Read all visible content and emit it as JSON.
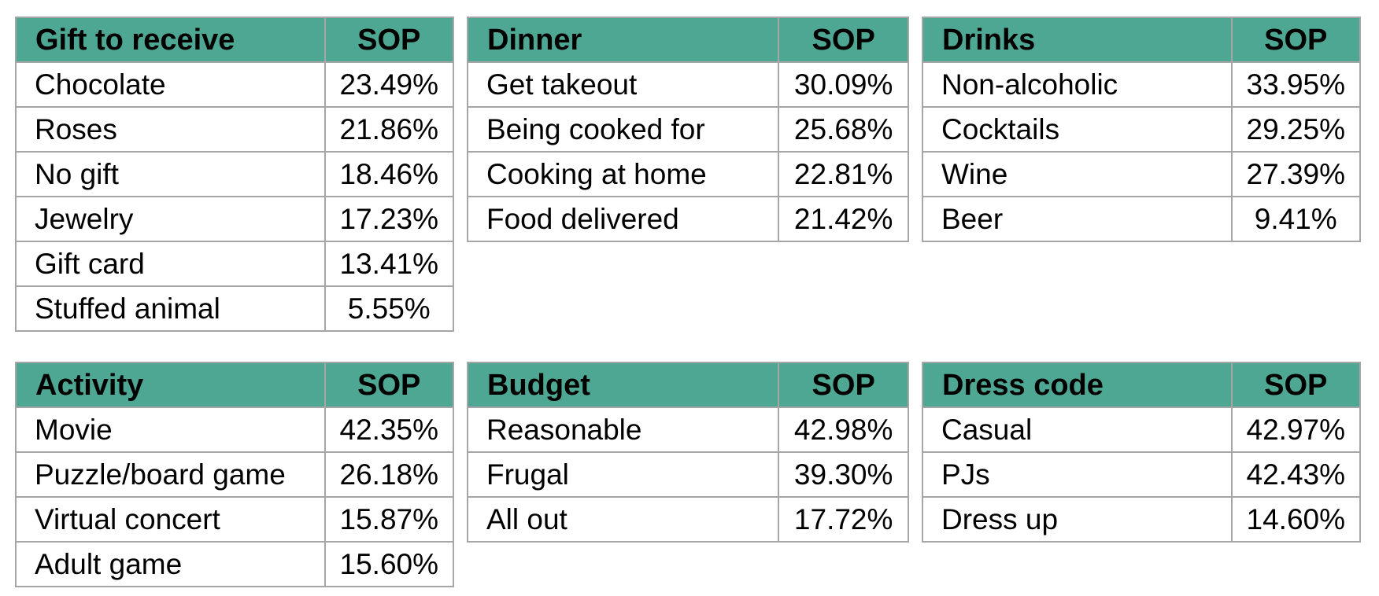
{
  "styles": {
    "header_bg": "#4DA792",
    "border_color": "#A6A6A6",
    "text_color": "#000000",
    "page_bg": "#FFFFFF"
  },
  "value_column_header": "SOP",
  "chart_data": [
    {
      "type": "table",
      "title": "Gift to receive",
      "columns": [
        "Gift to receive",
        "SOP"
      ],
      "legend_position": "none",
      "rows": [
        [
          "Chocolate",
          "23.49%"
        ],
        [
          "Roses",
          "21.86%"
        ],
        [
          "No gift",
          "18.46%"
        ],
        [
          "Jewelry",
          "17.23%"
        ],
        [
          "Gift card",
          "13.41%"
        ],
        [
          "Stuffed animal",
          "5.55%"
        ]
      ],
      "values_numeric": [
        23.49,
        21.86,
        18.46,
        17.23,
        13.41,
        5.55
      ]
    },
    {
      "type": "table",
      "title": "Dinner",
      "columns": [
        "Dinner",
        "SOP"
      ],
      "legend_position": "none",
      "rows": [
        [
          "Get takeout",
          "30.09%"
        ],
        [
          "Being cooked for",
          "25.68%"
        ],
        [
          "Cooking at home",
          "22.81%"
        ],
        [
          "Food delivered",
          "21.42%"
        ]
      ],
      "values_numeric": [
        30.09,
        25.68,
        22.81,
        21.42
      ]
    },
    {
      "type": "table",
      "title": "Drinks",
      "columns": [
        "Drinks",
        "SOP"
      ],
      "legend_position": "none",
      "rows": [
        [
          "Non-alcoholic",
          "33.95%"
        ],
        [
          "Cocktails",
          "29.25%"
        ],
        [
          "Wine",
          "27.39%"
        ],
        [
          "Beer",
          "9.41%"
        ]
      ],
      "values_numeric": [
        33.95,
        29.25,
        27.39,
        9.41
      ]
    },
    {
      "type": "table",
      "title": "Activity",
      "columns": [
        "Activity",
        "SOP"
      ],
      "legend_position": "none",
      "rows": [
        [
          "Movie",
          "42.35%"
        ],
        [
          "Puzzle/board game",
          "26.18%"
        ],
        [
          "Virtual concert",
          "15.87%"
        ],
        [
          "Adult game",
          "15.60%"
        ]
      ],
      "values_numeric": [
        42.35,
        26.18,
        15.87,
        15.6
      ]
    },
    {
      "type": "table",
      "title": "Budget",
      "columns": [
        "Budget",
        "SOP"
      ],
      "legend_position": "none",
      "rows": [
        [
          "Reasonable",
          "42.98%"
        ],
        [
          "Frugal",
          "39.30%"
        ],
        [
          "All out",
          "17.72%"
        ]
      ],
      "values_numeric": [
        42.98,
        39.3,
        17.72
      ]
    },
    {
      "type": "table",
      "title": "Dress code",
      "columns": [
        "Dress code",
        "SOP"
      ],
      "legend_position": "none",
      "rows": [
        [
          "Casual",
          "42.97%"
        ],
        [
          "PJs",
          "42.43%"
        ],
        [
          "Dress up",
          "14.60%"
        ]
      ],
      "values_numeric": [
        42.97,
        42.43,
        14.6
      ]
    }
  ]
}
